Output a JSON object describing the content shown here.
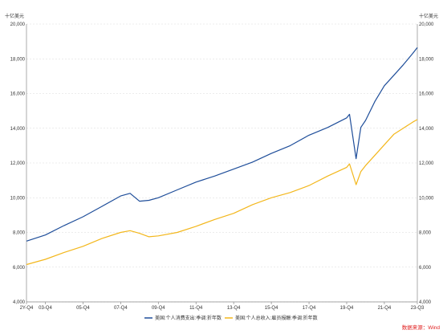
{
  "chart_data": {
    "type": "line",
    "unit_left": "十亿美元",
    "unit_right": "十亿美元",
    "x_tick_labels": [
      "2Y-Q4",
      "03-Q4",
      "05-Q4",
      "07-Q4",
      "09-Q4",
      "11-Q4",
      "13-Q4",
      "15-Q4",
      "17-Q4",
      "19-Q4",
      "21-Q4",
      "23-Q3"
    ],
    "x_tick_values": [
      2002.75,
      2003.75,
      2005.75,
      2007.75,
      2009.75,
      2011.75,
      2013.75,
      2015.75,
      2017.75,
      2019.75,
      2021.75,
      2023.5
    ],
    "xlim": [
      2002.75,
      2023.5
    ],
    "ylim": [
      4000,
      20000
    ],
    "y_ticks": [
      4000,
      6000,
      8000,
      10000,
      12000,
      14000,
      16000,
      18000,
      20000
    ],
    "y_tick_labels": [
      "4,000",
      "6,000",
      "8,000",
      "10,000",
      "12,000",
      "14,000",
      "16,000",
      "18,000",
      "20,000"
    ],
    "grid": true,
    "legend_position": "bottom",
    "series": [
      {
        "name": "美国:个人消费支出:季调:折年数",
        "color": "#1f4e9a",
        "x": [
          2002.75,
          2003.75,
          2004.75,
          2005.75,
          2006.75,
          2007.75,
          2008.25,
          2008.75,
          2009.25,
          2009.75,
          2010.75,
          2011.75,
          2012.75,
          2013.75,
          2014.75,
          2015.75,
          2016.75,
          2017.75,
          2018.75,
          2019.75,
          2019.9,
          2020.25,
          2020.5,
          2020.75,
          2021.25,
          2021.75,
          2022.25,
          2022.75,
          2023.25,
          2023.5
        ],
        "values": [
          7500,
          7850,
          8400,
          8900,
          9500,
          10100,
          10250,
          9800,
          9850,
          10000,
          10450,
          10900,
          11250,
          11650,
          12050,
          12550,
          13000,
          13600,
          14050,
          14600,
          14800,
          12250,
          14050,
          14450,
          15550,
          16450,
          17050,
          17650,
          18300,
          18650
        ]
      },
      {
        "name": "美国:个人总收入:雇员报酬:季调:折年数",
        "color": "#f3b71c",
        "x": [
          2002.75,
          2003.75,
          2004.75,
          2005.75,
          2006.75,
          2007.75,
          2008.25,
          2008.75,
          2009.25,
          2009.75,
          2010.75,
          2011.75,
          2012.75,
          2013.75,
          2014.75,
          2015.75,
          2016.75,
          2017.75,
          2018.75,
          2019.75,
          2019.9,
          2020.25,
          2020.5,
          2020.75,
          2021.25,
          2021.75,
          2022.25,
          2022.75,
          2023.25,
          2023.5
        ],
        "values": [
          6150,
          6450,
          6850,
          7200,
          7650,
          8000,
          8100,
          7950,
          7750,
          7800,
          8000,
          8350,
          8750,
          9100,
          9600,
          10000,
          10300,
          10700,
          11250,
          11750,
          11950,
          10750,
          11500,
          11850,
          12450,
          13050,
          13650,
          14000,
          14350,
          14500
        ]
      }
    ]
  },
  "source_note": "数据来源：Wind"
}
